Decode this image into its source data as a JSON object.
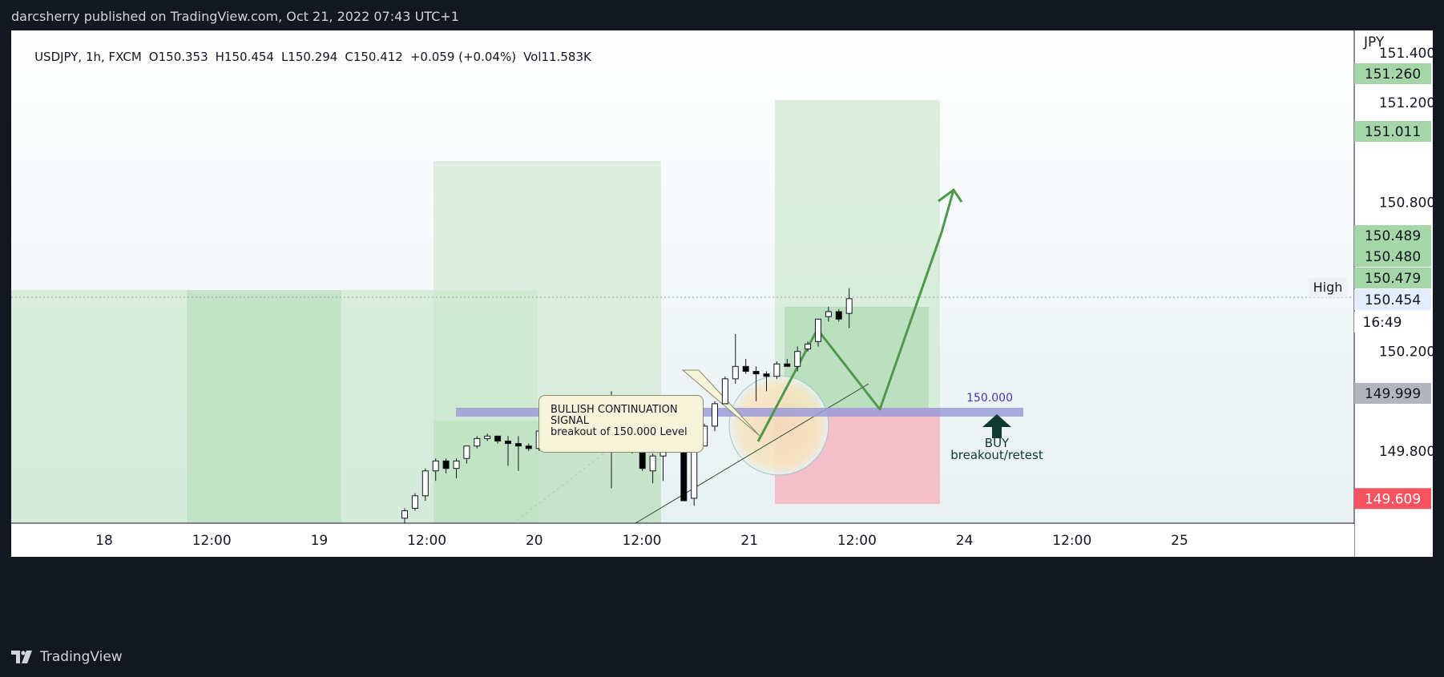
{
  "header": {
    "publisher_line": "darcsherry published on TradingView.com, Oct 21, 2022 07:43 UTC+1"
  },
  "legend": {
    "symbol": "USDJPY, 1h, FXCM",
    "open": "O150.353",
    "high": "H150.454",
    "low": "L150.294",
    "close": "C150.412",
    "change": "+0.059 (+0.04%)",
    "volume": "Vol11.583K"
  },
  "footer": {
    "brand": "TradingView"
  },
  "annotations": {
    "callout_line1": "BULLISH CONTINUATION",
    "callout_line2": "SIGNAL",
    "callout_line3": "breakout of 150.000 Level",
    "level_label": "150.000",
    "buy_label": "BUY",
    "buy_sub_label": "breakout/retest",
    "high_tag": "High"
  },
  "colors": {
    "background": "#131722",
    "up_candle": "#ffffff",
    "down_candle": "#000000",
    "target_zone": "#c8e6c9",
    "stop_zone": "#f4b6bf",
    "level_band": "#9c9cd8",
    "arrow_line": "#4e9a4a",
    "price_tag_green": "#a5d6a7",
    "price_tag_red": "#f7525f",
    "price_tag_grey": "#b2b5be",
    "level_text": "#3f37c9"
  },
  "chart_data": {
    "type": "candlestick",
    "title": "USDJPY, 1h, FXCM",
    "currency_label": "JPY",
    "y_axis": {
      "range": [
        149.51,
        151.49
      ],
      "tick_labels": [
        "151.400",
        "151.200",
        "150.800",
        "150.200",
        "149.800"
      ]
    },
    "x_axis": {
      "tick_labels": [
        "18",
        "12:00",
        "19",
        "12:00",
        "20",
        "12:00",
        "21",
        "12:00",
        "24",
        "12:00",
        "25"
      ]
    },
    "price_tags": [
      {
        "label": "151.260",
        "value": 151.26,
        "style": "green"
      },
      {
        "label": "151.011",
        "value": 151.011,
        "style": "green"
      },
      {
        "label": "150.489",
        "value": 150.489,
        "style": "green"
      },
      {
        "label": "150.480",
        "value": 150.48,
        "style": "green"
      },
      {
        "label": "150.479",
        "value": 150.479,
        "style": "green"
      },
      {
        "label": "150.454",
        "value": 150.454,
        "style": "light"
      },
      {
        "label": "16:49",
        "value": 150.381,
        "style": "white"
      },
      {
        "label": "149.999",
        "value": 149.999,
        "style": "grey"
      },
      {
        "label": "149.609",
        "value": 149.609,
        "style": "red"
      }
    ],
    "candles": [
      {
        "i": 0,
        "o": 149.53,
        "h": 149.57,
        "l": 149.51,
        "c": 149.56
      },
      {
        "i": 1,
        "o": 149.57,
        "h": 149.63,
        "l": 149.56,
        "c": 149.62
      },
      {
        "i": 2,
        "o": 149.62,
        "h": 149.73,
        "l": 149.6,
        "c": 149.72
      },
      {
        "i": 3,
        "o": 149.72,
        "h": 149.77,
        "l": 149.68,
        "c": 149.76
      },
      {
        "i": 4,
        "o": 149.76,
        "h": 149.77,
        "l": 149.71,
        "c": 149.73
      },
      {
        "i": 5,
        "o": 149.73,
        "h": 149.77,
        "l": 149.69,
        "c": 149.76
      },
      {
        "i": 6,
        "o": 149.77,
        "h": 149.82,
        "l": 149.75,
        "c": 149.82
      },
      {
        "i": 7,
        "o": 149.82,
        "h": 149.86,
        "l": 149.81,
        "c": 149.85
      },
      {
        "i": 8,
        "o": 149.85,
        "h": 149.87,
        "l": 149.84,
        "c": 149.86
      },
      {
        "i": 9,
        "o": 149.86,
        "h": 149.86,
        "l": 149.83,
        "c": 149.84
      },
      {
        "i": 10,
        "o": 149.84,
        "h": 149.86,
        "l": 149.74,
        "c": 149.83
      },
      {
        "i": 11,
        "o": 149.83,
        "h": 149.86,
        "l": 149.72,
        "c": 149.82
      },
      {
        "i": 12,
        "o": 149.82,
        "h": 149.83,
        "l": 149.8,
        "c": 149.81
      },
      {
        "i": 13,
        "o": 149.81,
        "h": 149.88,
        "l": 149.8,
        "c": 149.88
      },
      {
        "i": 14,
        "o": 149.88,
        "h": 149.91,
        "l": 149.87,
        "c": 149.88
      },
      {
        "i": 15,
        "o": 149.88,
        "h": 149.9,
        "l": 149.87,
        "c": 149.88
      },
      {
        "i": 16,
        "o": 149.88,
        "h": 149.89,
        "l": 149.86,
        "c": 149.87
      },
      {
        "i": 17,
        "o": 149.86,
        "h": 149.88,
        "l": 149.83,
        "c": 149.86
      },
      {
        "i": 18,
        "o": 149.86,
        "h": 149.91,
        "l": 149.85,
        "c": 149.9
      },
      {
        "i": 19,
        "o": 149.9,
        "h": 149.92,
        "l": 149.87,
        "c": 149.9
      },
      {
        "i": 20,
        "o": 149.91,
        "h": 150.04,
        "l": 149.65,
        "c": 149.85
      },
      {
        "i": 21,
        "o": 149.9,
        "h": 149.91,
        "l": 149.84,
        "c": 149.85
      },
      {
        "i": 22,
        "o": 149.9,
        "h": 149.91,
        "l": 149.79,
        "c": 149.8
      },
      {
        "i": 23,
        "o": 149.8,
        "h": 149.83,
        "l": 149.72,
        "c": 149.73
      },
      {
        "i": 24,
        "o": 149.72,
        "h": 149.79,
        "l": 149.67,
        "c": 149.78
      },
      {
        "i": 25,
        "o": 149.78,
        "h": 149.89,
        "l": 149.68,
        "c": 149.88
      },
      {
        "i": 26,
        "o": 149.88,
        "h": 149.9,
        "l": 149.81,
        "c": 149.86
      },
      {
        "i": 27,
        "o": 149.87,
        "h": 149.88,
        "l": 149.6,
        "c": 149.6
      },
      {
        "i": 28,
        "o": 149.61,
        "h": 149.81,
        "l": 149.58,
        "c": 149.8
      },
      {
        "i": 29,
        "o": 149.82,
        "h": 149.91,
        "l": 149.82,
        "c": 149.9
      },
      {
        "i": 30,
        "o": 149.9,
        "h": 150.0,
        "l": 149.88,
        "c": 149.99
      },
      {
        "i": 31,
        "o": 149.99,
        "h": 150.1,
        "l": 149.99,
        "c": 150.09
      },
      {
        "i": 32,
        "o": 150.09,
        "h": 150.27,
        "l": 150.07,
        "c": 150.14
      },
      {
        "i": 33,
        "o": 150.14,
        "h": 150.17,
        "l": 150.11,
        "c": 150.12
      },
      {
        "i": 34,
        "o": 150.12,
        "h": 150.14,
        "l": 150.0,
        "c": 150.11
      },
      {
        "i": 35,
        "o": 150.11,
        "h": 150.12,
        "l": 150.04,
        "c": 150.1
      },
      {
        "i": 36,
        "o": 150.1,
        "h": 150.16,
        "l": 150.09,
        "c": 150.15
      },
      {
        "i": 37,
        "o": 150.15,
        "h": 150.17,
        "l": 150.14,
        "c": 150.14
      },
      {
        "i": 38,
        "o": 150.14,
        "h": 150.22,
        "l": 150.12,
        "c": 150.2
      },
      {
        "i": 39,
        "o": 150.21,
        "h": 150.24,
        "l": 150.2,
        "c": 150.23
      },
      {
        "i": 40,
        "o": 150.24,
        "h": 150.33,
        "l": 150.22,
        "c": 150.33
      },
      {
        "i": 41,
        "o": 150.34,
        "h": 150.38,
        "l": 150.32,
        "c": 150.36
      },
      {
        "i": 42,
        "o": 150.36,
        "h": 150.37,
        "l": 150.32,
        "c": 150.33
      },
      {
        "i": 43,
        "o": 150.353,
        "h": 150.454,
        "l": 150.294,
        "c": 150.412
      }
    ]
  }
}
